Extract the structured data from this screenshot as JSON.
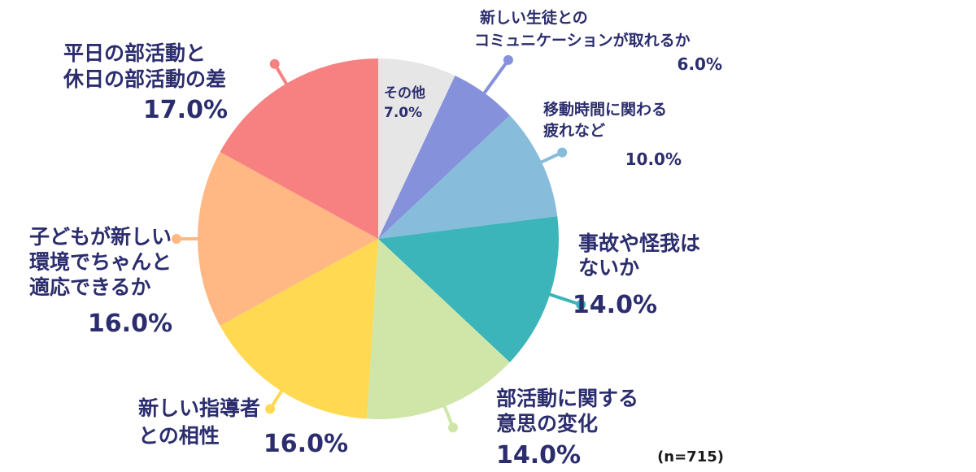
{
  "chart_data": {
    "type": "pie",
    "n_note": "(n=715)",
    "slices": [
      {
        "name": "その他",
        "value": 7.0,
        "label": "7.0%",
        "color": "#e6e6e6"
      },
      {
        "name": "新しい生徒とのコミュニケーションが取れるか",
        "value": 6.0,
        "label": "6.0%",
        "color": "#8591da"
      },
      {
        "name": "移動時間に関わる疲れなど",
        "value": 10.0,
        "label": "10.0%",
        "color": "#87bcdb"
      },
      {
        "name": "事故や怪我はないか",
        "value": 14.0,
        "label": "14.0%",
        "color": "#3bb5b9"
      },
      {
        "name": "部活動に関する意思の変化",
        "value": 14.0,
        "label": "14.0%",
        "color": "#d0e6a8"
      },
      {
        "name": "新しい指導者との相性",
        "value": 16.0,
        "label": "16.0%",
        "color": "#ffd952"
      },
      {
        "name": "子どもが新しい環境でちゃんと適応できるか",
        "value": 16.0,
        "label": "16.0%",
        "color": "#ffb884"
      },
      {
        "name": "平日の部活動と休日の部活動の差",
        "value": 17.0,
        "label": "17.0%",
        "color": "#f78181"
      }
    ]
  },
  "labels": {
    "other": {
      "lines": [
        "その他"
      ],
      "pct": "7.0%"
    },
    "communication": {
      "lines": [
        "新しい生徒との",
        "コミュニケーションが取れるか"
      ],
      "pct": "6.0%"
    },
    "travel": {
      "lines": [
        "移動時間に関わる",
        "疲れなど"
      ],
      "pct": "10.0%"
    },
    "accident": {
      "lines": [
        "事故や怪我は",
        "ないか"
      ],
      "pct": "14.0%"
    },
    "will": {
      "lines": [
        "部活動に関する",
        "意思の変化"
      ],
      "pct": "14.0%"
    },
    "coach": {
      "lines": [
        "新しい指導者",
        "との相性"
      ],
      "pct": "16.0%"
    },
    "adapt": {
      "lines": [
        "子どもが新しい",
        "環境でちゃんと",
        "適応できるか"
      ],
      "pct": "16.0%"
    },
    "weekday": {
      "lines": [
        "平日の部活動と",
        "休日の部活動の差"
      ],
      "pct": "17.0%"
    }
  }
}
